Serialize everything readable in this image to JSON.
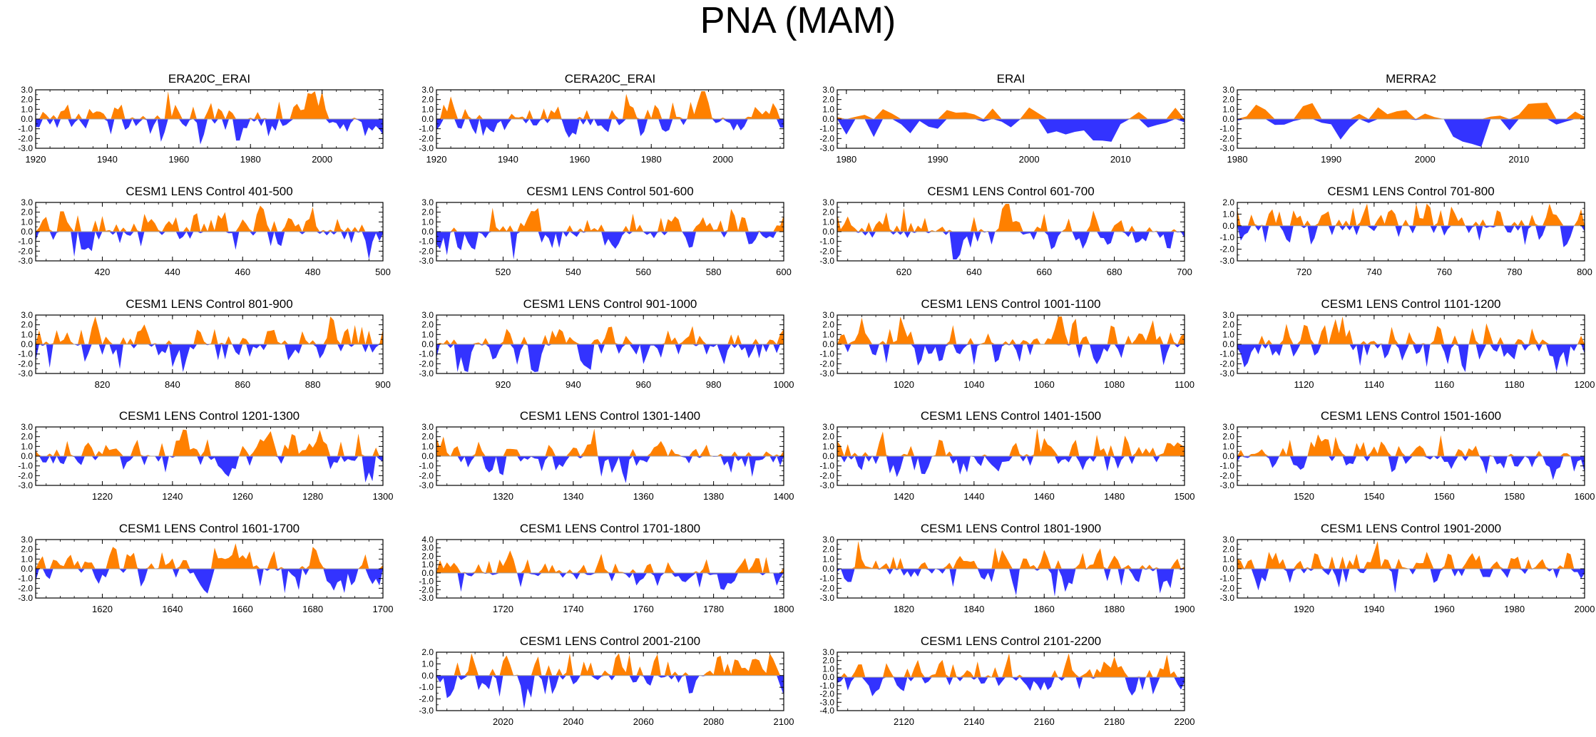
{
  "title": "PNA (MAM)",
  "colors": {
    "positive": "#ff8000",
    "negative": "#3333ff",
    "axis": "#000000",
    "zero_line": "#a0a0a0"
  },
  "chart_data": [
    {
      "type": "area",
      "title": "ERA20C_ERAI",
      "xlim": [
        1920,
        2017
      ],
      "xticks": [
        "1920",
        "1940",
        "1960",
        "1980",
        "2000"
      ],
      "xtick_values": [
        1920,
        1940,
        1960,
        1980,
        2000
      ],
      "yticks": [
        "3.0",
        "2.0",
        "1.0",
        "0.0",
        "-1.0",
        "-2.0",
        "-3.0"
      ],
      "ylim": [
        -3,
        3
      ],
      "seed": 11
    },
    {
      "type": "area",
      "title": "CERA20C_ERAI",
      "xlim": [
        1920,
        2017
      ],
      "xticks": [
        "1920",
        "1940",
        "1960",
        "1980",
        "2000"
      ],
      "xtick_values": [
        1920,
        1940,
        1960,
        1980,
        2000
      ],
      "yticks": [
        "3.0",
        "2.0",
        "1.0",
        "0.0",
        "-1.0",
        "-2.0",
        "-3.0"
      ],
      "ylim": [
        -3,
        3
      ],
      "seed": 12
    },
    {
      "type": "area",
      "title": "ERAI",
      "xlim": [
        1979,
        2017
      ],
      "xticks": [
        "1980",
        "1990",
        "2000",
        "2010"
      ],
      "xtick_values": [
        1980,
        1990,
        2000,
        2010
      ],
      "yticks": [
        "3.0",
        "2.0",
        "1.0",
        "0.0",
        "-1.0",
        "-2.0",
        "-3.0"
      ],
      "ylim": [
        -3,
        3
      ],
      "seed": 13
    },
    {
      "type": "area",
      "title": "MERRA2",
      "xlim": [
        1980,
        2017
      ],
      "xticks": [
        "1980",
        "1990",
        "2000",
        "2010"
      ],
      "xtick_values": [
        1980,
        1990,
        2000,
        2010
      ],
      "yticks": [
        "3.0",
        "2.0",
        "1.0",
        "0.0",
        "-1.0",
        "-2.0",
        "-3.0"
      ],
      "ylim": [
        -3,
        3
      ],
      "seed": 14
    },
    {
      "type": "area",
      "title": "CESM1 LENS Control 401-500",
      "xlim": [
        401,
        500
      ],
      "xticks": [
        "420",
        "440",
        "460",
        "480",
        "500"
      ],
      "xtick_values": [
        420,
        440,
        460,
        480,
        500
      ],
      "yticks": [
        "3.0",
        "2.0",
        "1.0",
        "0.0",
        "-1.0",
        "-2.0",
        "-3.0"
      ],
      "ylim": [
        -3,
        3
      ],
      "seed": 21
    },
    {
      "type": "area",
      "title": "CESM1 LENS Control 501-600",
      "xlim": [
        501,
        600
      ],
      "xticks": [
        "520",
        "540",
        "560",
        "580",
        "600"
      ],
      "xtick_values": [
        520,
        540,
        560,
        580,
        600
      ],
      "yticks": [
        "3.0",
        "2.0",
        "1.0",
        "0.0",
        "-1.0",
        "-2.0",
        "-3.0"
      ],
      "ylim": [
        -3,
        3
      ],
      "seed": 22
    },
    {
      "type": "area",
      "title": "CESM1 LENS Control 601-700",
      "xlim": [
        601,
        700
      ],
      "xticks": [
        "620",
        "640",
        "660",
        "680",
        "700"
      ],
      "xtick_values": [
        620,
        640,
        660,
        680,
        700
      ],
      "yticks": [
        "3.0",
        "2.0",
        "1.0",
        "0.0",
        "-1.0",
        "-2.0",
        "-3.0"
      ],
      "ylim": [
        -3,
        3
      ],
      "seed": 23
    },
    {
      "type": "area",
      "title": "CESM1 LENS Control 701-800",
      "xlim": [
        701,
        800
      ],
      "xticks": [
        "720",
        "740",
        "760",
        "780",
        "800"
      ],
      "xtick_values": [
        720,
        740,
        760,
        780,
        800
      ],
      "yticks": [
        "2.0",
        "1.0",
        "0.0",
        "-1.0",
        "-2.0",
        "-3.0"
      ],
      "ylim": [
        -3,
        2
      ],
      "seed": 24
    },
    {
      "type": "area",
      "title": "CESM1 LENS Control 801-900",
      "xlim": [
        801,
        900
      ],
      "xticks": [
        "820",
        "840",
        "860",
        "880",
        "900"
      ],
      "xtick_values": [
        820,
        840,
        860,
        880,
        900
      ],
      "yticks": [
        "3.0",
        "2.0",
        "1.0",
        "0.0",
        "-1.0",
        "-2.0",
        "-3.0"
      ],
      "ylim": [
        -3,
        3
      ],
      "seed": 31
    },
    {
      "type": "area",
      "title": "CESM1 LENS Control 901-1000",
      "xlim": [
        901,
        1000
      ],
      "xticks": [
        "920",
        "940",
        "960",
        "980",
        "1000"
      ],
      "xtick_values": [
        920,
        940,
        960,
        980,
        1000
      ],
      "yticks": [
        "3.0",
        "2.0",
        "1.0",
        "0.0",
        "-1.0",
        "-2.0",
        "-3.0"
      ],
      "ylim": [
        -3,
        3
      ],
      "seed": 32
    },
    {
      "type": "area",
      "title": "CESM1 LENS Control 1001-1100",
      "xlim": [
        1001,
        1100
      ],
      "xticks": [
        "1020",
        "1040",
        "1060",
        "1080",
        "1100"
      ],
      "xtick_values": [
        1020,
        1040,
        1060,
        1080,
        1100
      ],
      "yticks": [
        "3.0",
        "2.0",
        "1.0",
        "0.0",
        "-1.0",
        "-2.0",
        "-3.0"
      ],
      "ylim": [
        -3,
        3
      ],
      "seed": 33
    },
    {
      "type": "area",
      "title": "CESM1 LENS Control 1101-1200",
      "xlim": [
        1101,
        1200
      ],
      "xticks": [
        "1120",
        "1140",
        "1160",
        "1180",
        "1200"
      ],
      "xtick_values": [
        1120,
        1140,
        1160,
        1180,
        1200
      ],
      "yticks": [
        "3.0",
        "2.0",
        "1.0",
        "0.0",
        "-1.0",
        "-2.0",
        "-3.0"
      ],
      "ylim": [
        -3,
        3
      ],
      "seed": 34
    },
    {
      "type": "area",
      "title": "CESM1 LENS Control 1201-1300",
      "xlim": [
        1201,
        1300
      ],
      "xticks": [
        "1220",
        "1240",
        "1260",
        "1280",
        "1300"
      ],
      "xtick_values": [
        1220,
        1240,
        1260,
        1280,
        1300
      ],
      "yticks": [
        "3.0",
        "2.0",
        "1.0",
        "0.0",
        "-1.0",
        "-2.0",
        "-3.0"
      ],
      "ylim": [
        -3,
        3
      ],
      "seed": 41
    },
    {
      "type": "area",
      "title": "CESM1 LENS Control 1301-1400",
      "xlim": [
        1301,
        1400
      ],
      "xticks": [
        "1320",
        "1340",
        "1360",
        "1380",
        "1400"
      ],
      "xtick_values": [
        1320,
        1340,
        1360,
        1380,
        1400
      ],
      "yticks": [
        "3.0",
        "2.0",
        "1.0",
        "0.0",
        "-1.0",
        "-2.0",
        "-3.0"
      ],
      "ylim": [
        -3,
        3
      ],
      "seed": 42
    },
    {
      "type": "area",
      "title": "CESM1 LENS Control 1401-1500",
      "xlim": [
        1401,
        1500
      ],
      "xticks": [
        "1420",
        "1440",
        "1460",
        "1480",
        "1500"
      ],
      "xtick_values": [
        1420,
        1440,
        1460,
        1480,
        1500
      ],
      "yticks": [
        "3.0",
        "2.0",
        "1.0",
        "0.0",
        "-1.0",
        "-2.0",
        "-3.0"
      ],
      "ylim": [
        -3,
        3
      ],
      "seed": 43
    },
    {
      "type": "area",
      "title": "CESM1 LENS Control 1501-1600",
      "xlim": [
        1501,
        1600
      ],
      "xticks": [
        "1520",
        "1540",
        "1560",
        "1580",
        "1600"
      ],
      "xtick_values": [
        1520,
        1540,
        1560,
        1580,
        1600
      ],
      "yticks": [
        "3.0",
        "2.0",
        "1.0",
        "0.0",
        "-1.0",
        "-2.0",
        "-3.0"
      ],
      "ylim": [
        -3,
        3
      ],
      "seed": 44
    },
    {
      "type": "area",
      "title": "CESM1 LENS Control 1601-1700",
      "xlim": [
        1601,
        1700
      ],
      "xticks": [
        "1620",
        "1640",
        "1660",
        "1680",
        "1700"
      ],
      "xtick_values": [
        1620,
        1640,
        1660,
        1680,
        1700
      ],
      "yticks": [
        "3.0",
        "2.0",
        "1.0",
        "0.0",
        "-1.0",
        "-2.0",
        "-3.0"
      ],
      "ylim": [
        -3,
        3
      ],
      "seed": 51
    },
    {
      "type": "area",
      "title": "CESM1 LENS Control 1701-1800",
      "xlim": [
        1701,
        1800
      ],
      "xticks": [
        "1720",
        "1740",
        "1760",
        "1780",
        "1800"
      ],
      "xtick_values": [
        1720,
        1740,
        1760,
        1780,
        1800
      ],
      "yticks": [
        "4.0",
        "3.0",
        "2.0",
        "1.0",
        "0.0",
        "-1.0",
        "-2.0",
        "-3.0"
      ],
      "ylim": [
        -3,
        4
      ],
      "seed": 52
    },
    {
      "type": "area",
      "title": "CESM1 LENS Control 1801-1900",
      "xlim": [
        1801,
        1900
      ],
      "xticks": [
        "1820",
        "1840",
        "1860",
        "1880",
        "1900"
      ],
      "xtick_values": [
        1820,
        1840,
        1860,
        1880,
        1900
      ],
      "yticks": [
        "3.0",
        "2.0",
        "1.0",
        "0.0",
        "-1.0",
        "-2.0",
        "-3.0"
      ],
      "ylim": [
        -3,
        3
      ],
      "seed": 53
    },
    {
      "type": "area",
      "title": "CESM1 LENS Control 1901-2000",
      "xlim": [
        1901,
        2000
      ],
      "xticks": [
        "1920",
        "1940",
        "1960",
        "1980",
        "2000"
      ],
      "xtick_values": [
        1920,
        1940,
        1960,
        1980,
        2000
      ],
      "yticks": [
        "3.0",
        "2.0",
        "1.0",
        "0.0",
        "-1.0",
        "-2.0",
        "-3.0"
      ],
      "ylim": [
        -3,
        3
      ],
      "seed": 54
    },
    {
      "type": "area",
      "title": "CESM1 LENS Control 2001-2100",
      "xlim": [
        2001,
        2100
      ],
      "xticks": [
        "2020",
        "2040",
        "2060",
        "2080",
        "2100"
      ],
      "xtick_values": [
        2020,
        2040,
        2060,
        2080,
        2100
      ],
      "yticks": [
        "2.0",
        "1.0",
        "0.0",
        "-1.0",
        "-2.0",
        "-3.0"
      ],
      "ylim": [
        -3,
        2
      ],
      "seed": 62
    },
    {
      "type": "area",
      "title": "CESM1 LENS Control 2101-2200",
      "xlim": [
        2101,
        2200
      ],
      "xticks": [
        "2120",
        "2140",
        "2160",
        "2180",
        "2200"
      ],
      "xtick_values": [
        2120,
        2140,
        2160,
        2180,
        2200
      ],
      "yticks": [
        "3.0",
        "2.0",
        "1.0",
        "0.0",
        "-1.0",
        "-2.0",
        "-3.0",
        "-4.0"
      ],
      "ylim": [
        -4,
        3
      ],
      "seed": 63
    }
  ]
}
